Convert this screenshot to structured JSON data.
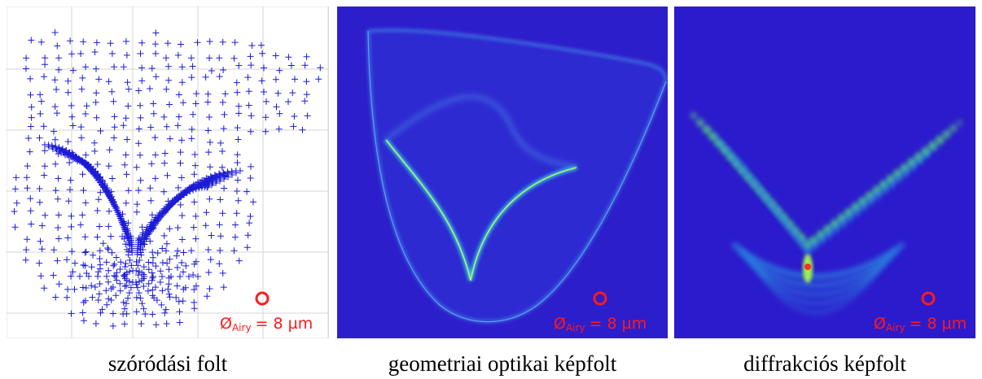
{
  "panels": [
    {
      "caption": "szóródási folt",
      "label": {
        "symbol": "Ø",
        "subscript": "Airy",
        "text": "= 8 µm"
      }
    },
    {
      "caption": "geometriai optikai képfolt",
      "label": {
        "symbol": "Ø",
        "subscript": "Airy",
        "text": "= 8 µm"
      }
    },
    {
      "caption": "diffrakciós képfolt",
      "label": {
        "symbol": "Ø",
        "subscript": "Airy",
        "text": "= 8 µm"
      }
    }
  ]
}
